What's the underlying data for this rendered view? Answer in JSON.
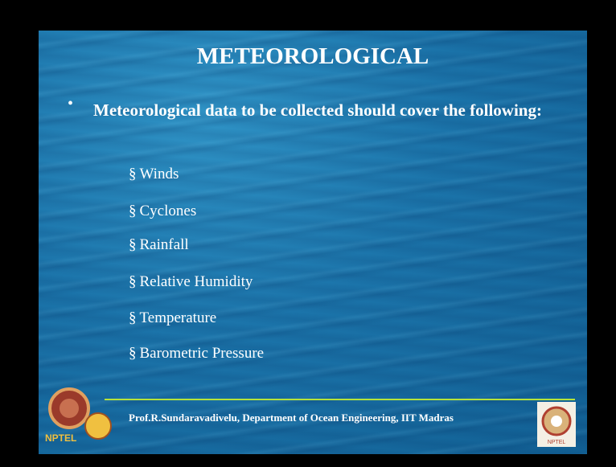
{
  "slide": {
    "title": "METEOROLOGICAL",
    "bullet_marker": "•",
    "bullet_text": "Meteorological data to be collected should cover the following:",
    "item_marker": "§",
    "items": [
      "Winds",
      "Cyclones",
      "Rainfall",
      "Relative Humidity",
      "Temperature",
      "Barometric Pressure"
    ],
    "footer": "Prof.R.Sundaravadivelu, Department of Ocean Engineering,  IIT Madras",
    "logo_left_text": "NPTEL",
    "logo_right_text": "NPTEL"
  }
}
